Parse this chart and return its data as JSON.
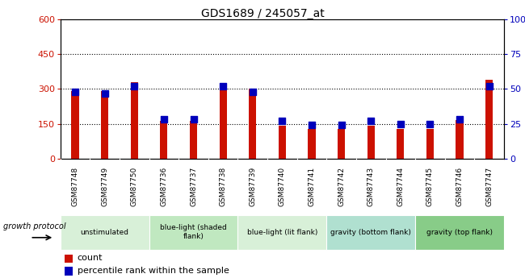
{
  "title": "GDS1689 / 245057_at",
  "samples": [
    "GSM87748",
    "GSM87749",
    "GSM87750",
    "GSM87736",
    "GSM87737",
    "GSM87738",
    "GSM87739",
    "GSM87740",
    "GSM87741",
    "GSM87742",
    "GSM87743",
    "GSM87744",
    "GSM87745",
    "GSM87746",
    "GSM87747"
  ],
  "counts": [
    290,
    290,
    330,
    162,
    162,
    323,
    300,
    140,
    128,
    128,
    143,
    128,
    128,
    165,
    340
  ],
  "percentiles": [
    48,
    47,
    52,
    28,
    28,
    52,
    48,
    27,
    24,
    24,
    27,
    25,
    25,
    28,
    52
  ],
  "ylim_left": [
    0,
    600
  ],
  "ylim_right": [
    0,
    100
  ],
  "yticks_left": [
    0,
    150,
    300,
    450,
    600
  ],
  "yticks_right": [
    0,
    25,
    50,
    75,
    100
  ],
  "bar_color": "#cc1100",
  "dot_color": "#0000bb",
  "groups": [
    {
      "label": "unstimulated",
      "start": 0,
      "end": 3,
      "color": "#d8f0d8"
    },
    {
      "label": "blue-light (shaded\nflank)",
      "start": 3,
      "end": 6,
      "color": "#c0e8c0"
    },
    {
      "label": "blue-light (lit flank)",
      "start": 6,
      "end": 9,
      "color": "#d8f0d8"
    },
    {
      "label": "gravity (bottom flank)",
      "start": 9,
      "end": 12,
      "color": "#b0e0d0"
    },
    {
      "label": "gravity (top flank)",
      "start": 12,
      "end": 15,
      "color": "#88cc88"
    }
  ],
  "xtick_bg": "#c8c8c8",
  "growth_protocol_label": "growth protocol",
  "legend_count_label": "count",
  "legend_percentile_label": "percentile rank within the sample",
  "bar_width": 0.25
}
